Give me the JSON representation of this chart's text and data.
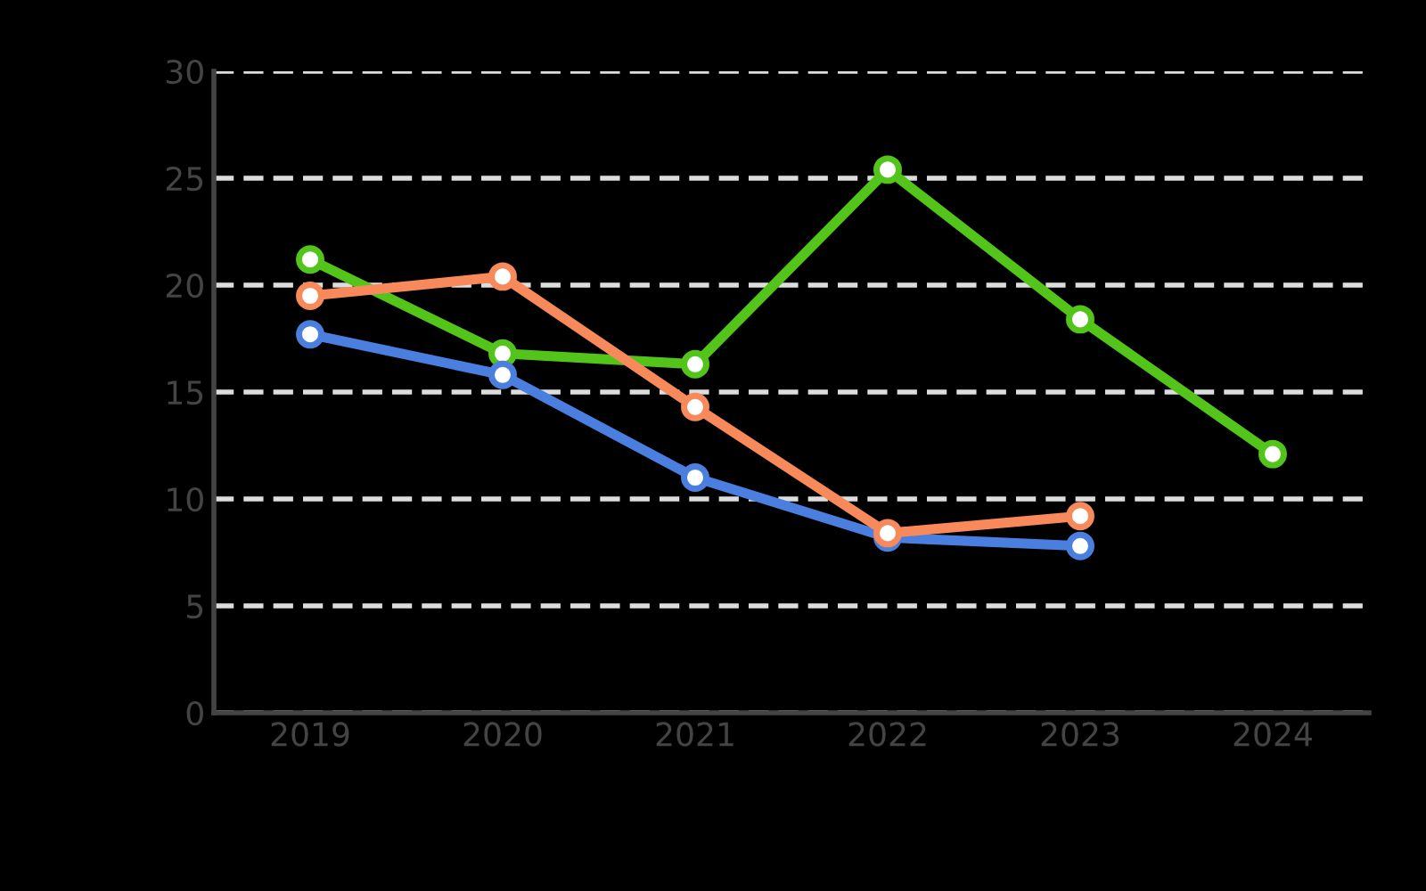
{
  "chart_data": {
    "type": "line",
    "categories": [
      "2019",
      "2020",
      "2021",
      "2022",
      "2023",
      "2024"
    ],
    "series": [
      {
        "color": "#52c41a",
        "values": [
          21.2,
          16.8,
          16.3,
          25.4,
          18.4,
          12.1
        ]
      },
      {
        "color": "#4a7fe0",
        "values": [
          17.7,
          15.8,
          11.0,
          8.2,
          7.8,
          null
        ]
      },
      {
        "color": "#f7895a",
        "values": [
          19.5,
          20.4,
          14.3,
          8.4,
          9.2,
          null
        ]
      }
    ],
    "ylim": [
      0,
      30
    ],
    "yticks": [
      0,
      5,
      10,
      15,
      20,
      25,
      30
    ],
    "grid": "y",
    "marker": "circle",
    "line_style": "solid"
  }
}
